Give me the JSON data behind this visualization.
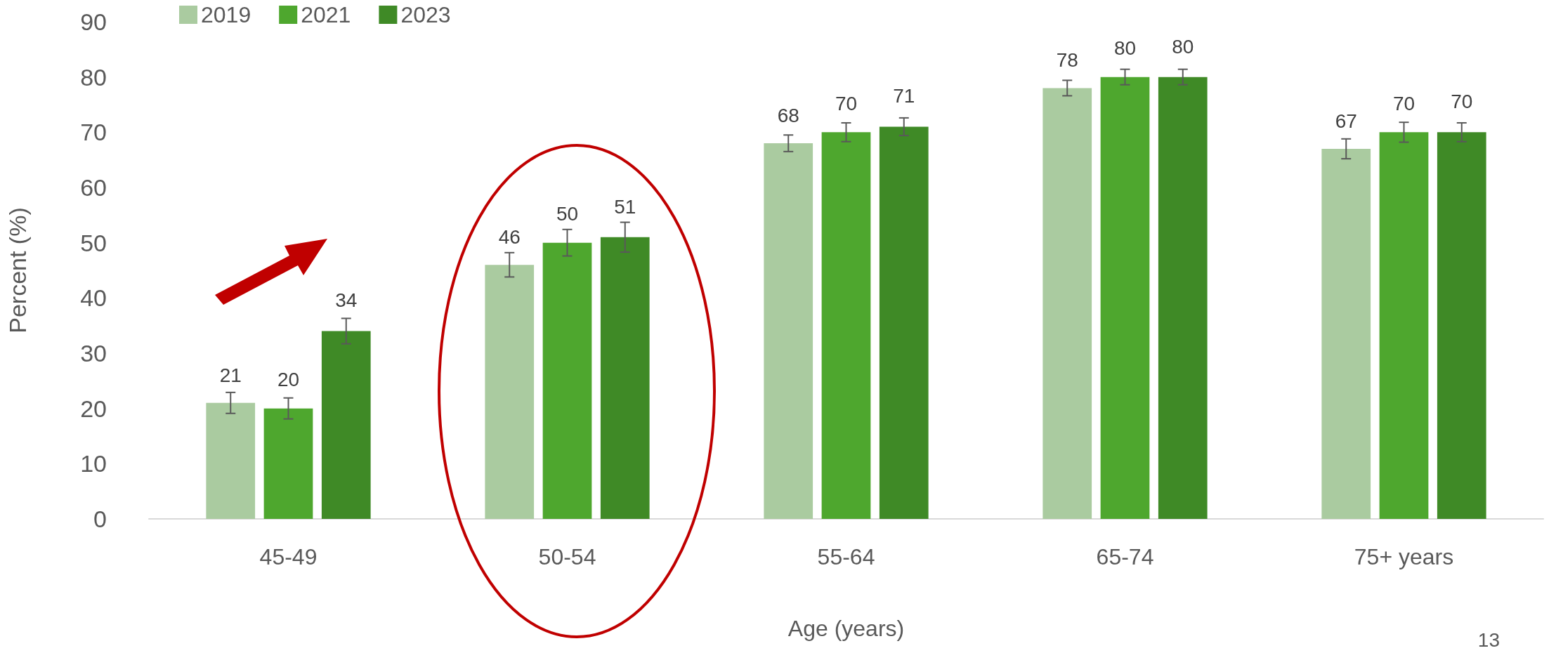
{
  "chart_data": {
    "type": "bar",
    "xlabel": "Age (years)",
    "ylabel": "Percent (%)",
    "categories": [
      "45-49",
      "50-54",
      "55-64",
      "65-74",
      "75+ years"
    ],
    "series": [
      {
        "name": "2019",
        "color": "#aacba0",
        "values": [
          21,
          46,
          68,
          78,
          67
        ],
        "errors": [
          1.9,
          2.2,
          1.5,
          1.4,
          1.8
        ]
      },
      {
        "name": "2021",
        "color": "#4ea72e",
        "values": [
          20,
          50,
          70,
          80,
          70
        ],
        "errors": [
          1.9,
          2.4,
          1.7,
          1.4,
          1.8
        ]
      },
      {
        "name": "2023",
        "color": "#3f8a26",
        "values": [
          34,
          51,
          71,
          80,
          70
        ],
        "errors": [
          2.3,
          2.7,
          1.6,
          1.4,
          1.7
        ]
      }
    ],
    "ylim": [
      0,
      90
    ],
    "yticks": [
      0,
      10,
      20,
      30,
      40,
      50,
      60,
      70,
      80,
      90
    ],
    "data_labels": true,
    "grid": false,
    "legend": "top left",
    "annotations": [
      "13"
    ]
  }
}
